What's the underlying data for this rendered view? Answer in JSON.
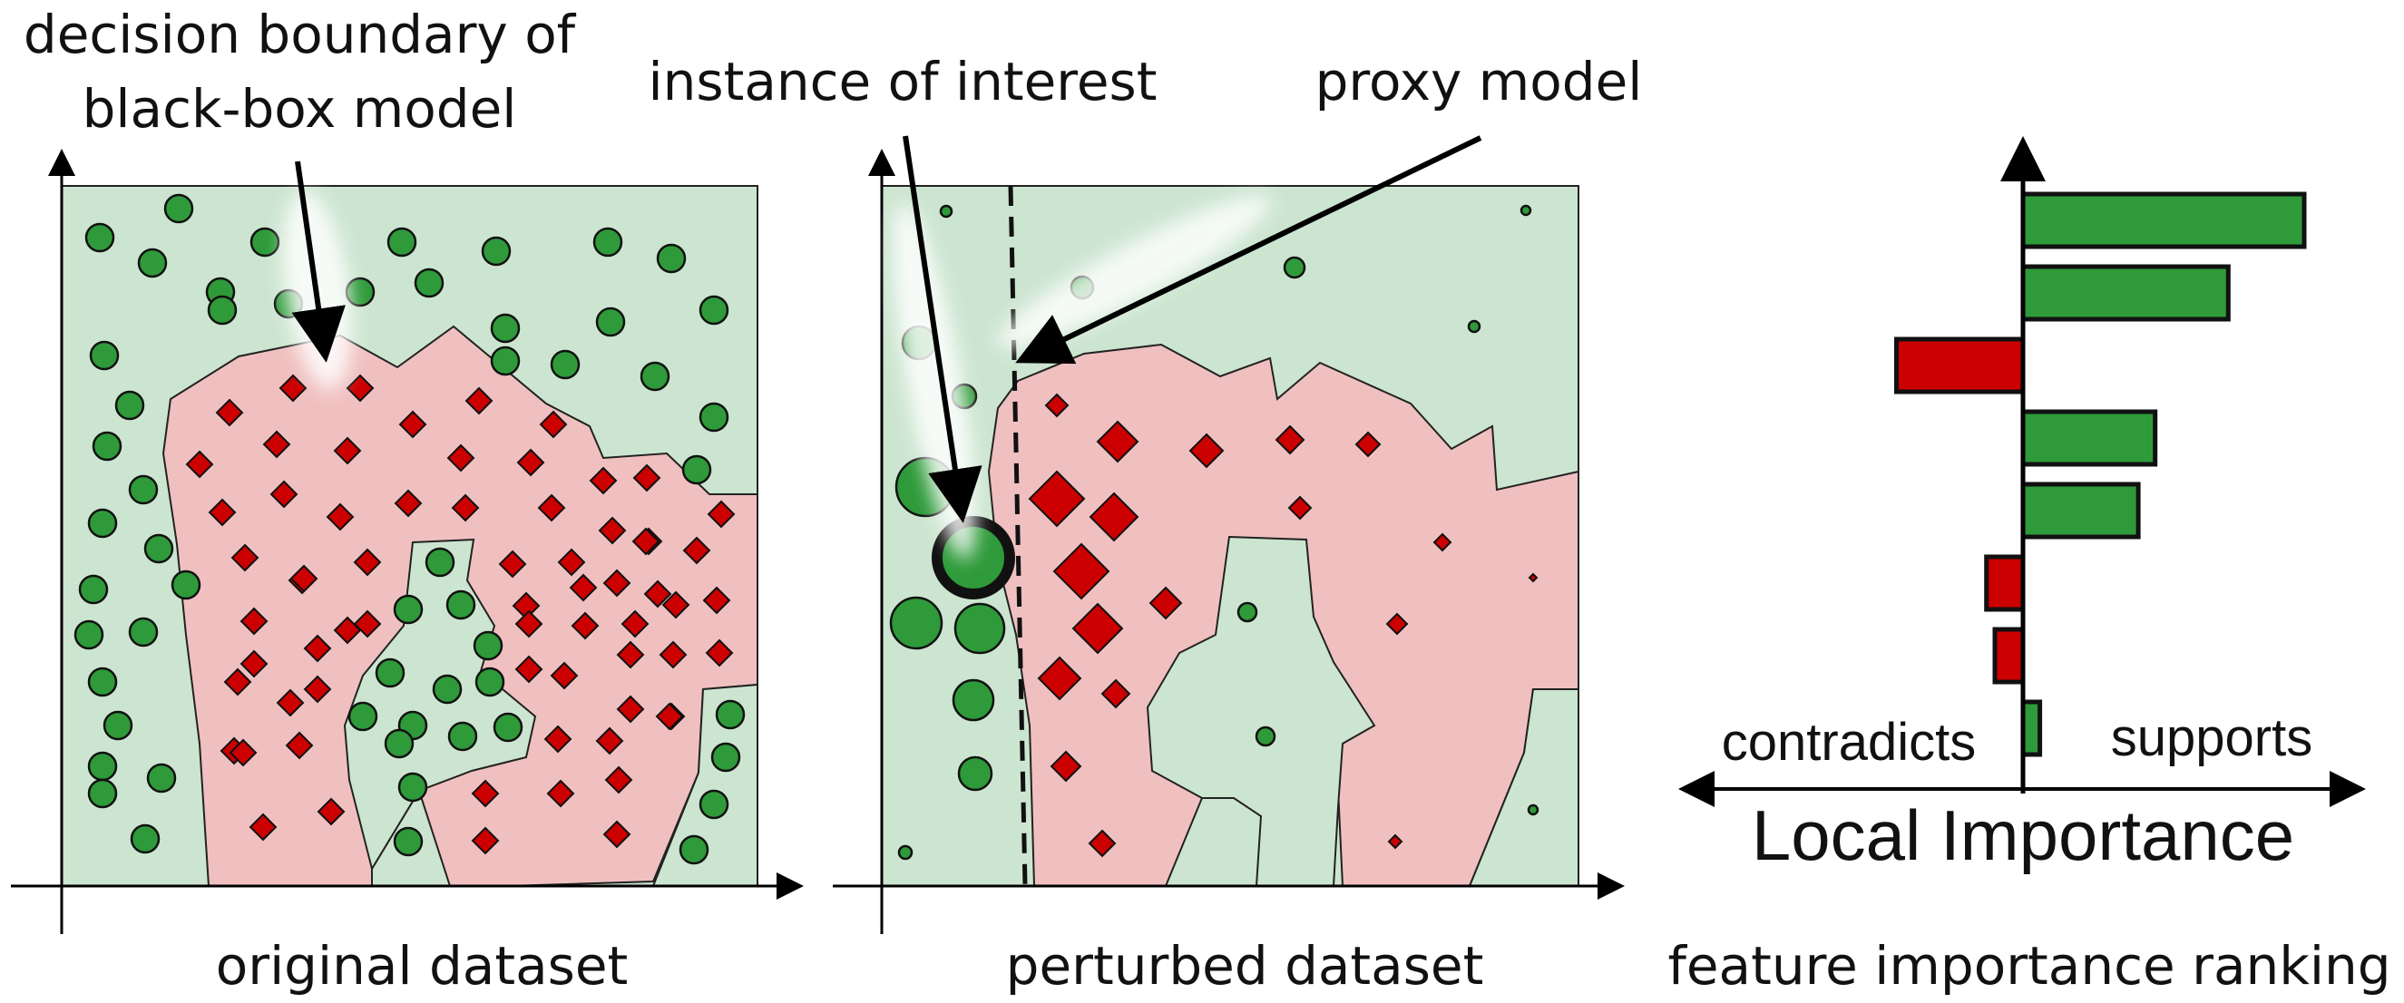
{
  "annotations": {
    "decision_boundary_line1": "decision boundary of",
    "decision_boundary_line2": "black-box model",
    "instance_of_interest": "instance of interest",
    "proxy_model": "proxy model"
  },
  "captions": {
    "original": "original dataset",
    "perturbed": "perturbed dataset",
    "ranking": "feature importance ranking"
  },
  "importance": {
    "contradicts_label": "contradicts",
    "supports_label": "supports",
    "axis_title": "Local Importance",
    "bars": [
      {
        "value": 1.0,
        "sign": "supports"
      },
      {
        "value": 0.73,
        "sign": "supports"
      },
      {
        "value": -0.45,
        "sign": "contradicts"
      },
      {
        "value": 0.47,
        "sign": "supports"
      },
      {
        "value": 0.41,
        "sign": "supports"
      },
      {
        "value": -0.13,
        "sign": "contradicts"
      },
      {
        "value": -0.1,
        "sign": "contradicts"
      },
      {
        "value": 0.06,
        "sign": "supports"
      }
    ]
  },
  "colors": {
    "green_region": "#cce5d0",
    "red_region": "#f0c0c0",
    "green_point": "#2e9a3a",
    "red_point": "#cc0000",
    "supports_bar": "#2e9a3a",
    "contradicts_bar": "#cc0000"
  }
}
